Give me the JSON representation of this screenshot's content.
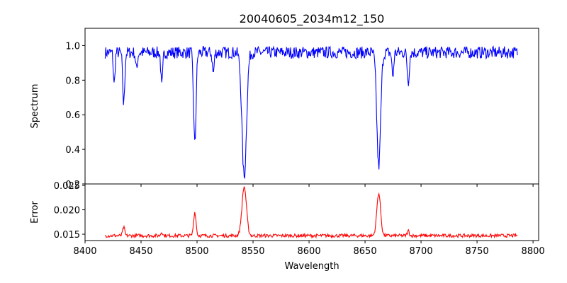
{
  "chart_data": [
    {
      "type": "line",
      "title": "20040605_2034m12_150",
      "xlabel": "",
      "ylabel": "Spectrum",
      "xlim": [
        8400,
        8805
      ],
      "ylim": [
        0.2,
        1.1
      ],
      "x_ticks": [
        8400,
        8450,
        8500,
        8550,
        8600,
        8650,
        8700,
        8750,
        8800
      ],
      "y_ticks": [
        0.2,
        0.4,
        0.6,
        0.8,
        1.0
      ],
      "y_tick_labels": [
        "0.2",
        "0.4",
        "0.6",
        "0.8",
        "1.0"
      ],
      "grid": false,
      "series": [
        {
          "color": "#0000ff",
          "x_start": 8418,
          "x_end": 8786,
          "baseline": 0.96,
          "noise_amplitude": 0.035,
          "line_depths": [
            {
              "center": 8426,
              "depth": 0.19,
              "width": 0.7
            },
            {
              "center": 8434.5,
              "depth": 0.3,
              "width": 0.9
            },
            {
              "center": 8446,
              "depth": 0.1,
              "width": 0.8
            },
            {
              "center": 8468.5,
              "depth": 0.2,
              "width": 0.8
            },
            {
              "center": 8498.0,
              "depth": 0.53,
              "width": 1.1
            },
            {
              "center": 8514.5,
              "depth": 0.12,
              "width": 0.8
            },
            {
              "center": 8542.1,
              "depth": 0.72,
              "width": 2.0
            },
            {
              "center": 8662.2,
              "depth": 0.66,
              "width": 1.7
            },
            {
              "center": 8674.8,
              "depth": 0.14,
              "width": 0.8
            },
            {
              "center": 8688.6,
              "depth": 0.17,
              "width": 0.9
            }
          ]
        }
      ]
    },
    {
      "type": "line",
      "title": "",
      "xlabel": "Wavelength",
      "ylabel": "Error",
      "xlim": [
        8400,
        8805
      ],
      "ylim": [
        0.0137,
        0.0253
      ],
      "x_ticks": [
        8400,
        8450,
        8500,
        8550,
        8600,
        8650,
        8700,
        8750,
        8800
      ],
      "x_tick_labels": [
        "8400",
        "8450",
        "8500",
        "8550",
        "8600",
        "8650",
        "8700",
        "8750",
        "8800"
      ],
      "y_ticks": [
        0.015,
        0.02,
        0.025
      ],
      "y_tick_labels": [
        "0.015",
        "0.020",
        "0.025"
      ],
      "grid": false,
      "series": [
        {
          "color": "#ff0000",
          "x_start": 8418,
          "x_end": 8786,
          "baseline": 0.0147,
          "noise_amplitude": 0.00035,
          "peaks": [
            {
              "center": 8434.5,
              "height": 0.0017,
              "width": 0.9
            },
            {
              "center": 8468.5,
              "height": 0.0008,
              "width": 0.8
            },
            {
              "center": 8498.0,
              "height": 0.0048,
              "width": 1.1
            },
            {
              "center": 8542.1,
              "height": 0.01,
              "width": 2.0
            },
            {
              "center": 8662.2,
              "height": 0.0087,
              "width": 1.7
            },
            {
              "center": 8688.6,
              "height": 0.001,
              "width": 0.9
            }
          ]
        }
      ]
    }
  ]
}
